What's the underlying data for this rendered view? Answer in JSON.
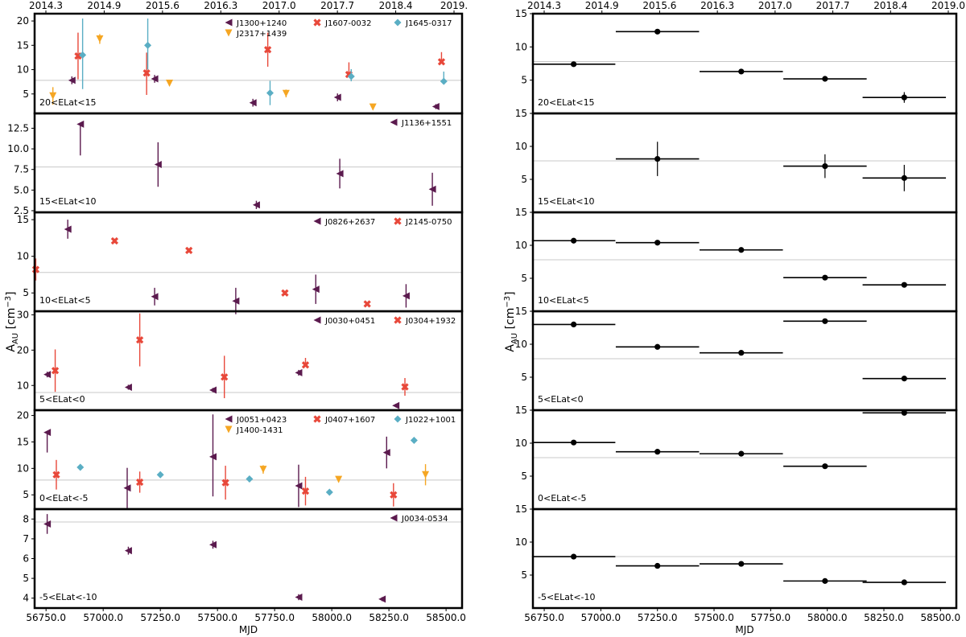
{
  "colors": {
    "J1": "#5b1a4e",
    "J2": "#e8483a",
    "J3": "#5aaec4",
    "J4": "#f5a623"
  },
  "chart_data": [
    {
      "type": "scatter",
      "title": "",
      "xlabel": "MJD",
      "ylabel": "A_AU [cm^-3]",
      "xlim": [
        56700,
        58570
      ],
      "x_ticks": [
        "56750.0",
        "57000.0",
        "57250.0",
        "57500.0",
        "57750.0",
        "58000.0",
        "58250.0",
        "58500.0"
      ],
      "top_ticks": [
        "2014.3",
        "2014.9",
        "2015.6",
        "2016.3",
        "2017.0",
        "2017.7",
        "2018.4",
        "2019."
      ],
      "panels": [
        {
          "label": "20<ELat<15",
          "ylim": [
            1,
            21.5
          ],
          "yticks": [
            "5",
            "10",
            "15",
            "20"
          ],
          "hline": 7.8,
          "series": [
            {
              "name": "J1300+1240",
              "marker": "tri-left",
              "color": "J1",
              "points": [
                [
                  56863,
                  7.8,
                  0.8,
                  0.8
                ],
                [
                  57225,
                  8.1,
                  0.8,
                  0.8
                ],
                [
                  57655,
                  3.2,
                  0.8,
                  0.8
                ],
                [
                  58025,
                  4.3,
                  0.8,
                  0.8
                ],
                [
                  58455,
                  2.4,
                  0.5,
                  0.5
                ]
              ]
            },
            {
              "name": "J1607-0032",
              "marker": "x",
              "color": "J2",
              "points": [
                [
                  56890,
                  12.8,
                  4.8,
                  4.8
                ],
                [
                  57190,
                  9.3,
                  4.2,
                  4.5
                ],
                [
                  57720,
                  14.1,
                  3.5,
                  3.5
                ],
                [
                  58075,
                  9.0,
                  2.5,
                  0
                ],
                [
                  58480,
                  11.6,
                  2.0,
                  0
                ]
              ]
            },
            {
              "name": "J1645-0317",
              "marker": "diamond",
              "color": "J3",
              "points": [
                [
                  56910,
                  13.0,
                  7.5,
                  7.0
                ],
                [
                  57195,
                  15.0,
                  5.5,
                  5.0
                ],
                [
                  57730,
                  5.2,
                  2.5,
                  2.5
                ],
                [
                  58085,
                  8.6,
                  1.5,
                  1.0
                ],
                [
                  58490,
                  7.6,
                  2.0,
                  0
                ]
              ]
            },
            {
              "name": "J2317+1439",
              "marker": "tri-down",
              "color": "J4",
              "points": [
                [
                  56780,
                  4.6,
                  1.8,
                  1.8
                ],
                [
                  56985,
                  16.3,
                  1.0,
                  1.0
                ],
                [
                  57290,
                  7.2,
                  0.5,
                  0.5
                ],
                [
                  57800,
                  5.1,
                  0.8,
                  0.8
                ],
                [
                  58180,
                  2.3,
                  0.6,
                  0.6
                ]
              ]
            }
          ]
        },
        {
          "label": "15<ELat<10",
          "ylim": [
            2.3,
            14.3
          ],
          "yticks": [
            "2.5",
            "5.0",
            "7.5",
            "10.0",
            "12.5"
          ],
          "hline": 7.8,
          "series": [
            {
              "name": "J1136+1551",
              "marker": "tri-left",
              "color": "J1",
              "points": [
                [
                  56900,
                  13.0,
                  0,
                  3.8
                ],
                [
                  57240,
                  8.1,
                  2.7,
                  2.7
                ],
                [
                  57670,
                  3.2,
                  0.5,
                  0.5
                ],
                [
                  58035,
                  7.0,
                  1.8,
                  1.8
                ],
                [
                  58440,
                  5.1,
                  2.0,
                  2.0
                ]
              ]
            }
          ]
        },
        {
          "label": "10<ELat<5",
          "ylim": [
            2.5,
            16
          ],
          "yticks": [
            "5",
            "10",
            "15"
          ],
          "hline": 7.8,
          "series": [
            {
              "name": "J0826+2637",
              "marker": "tri-left",
              "color": "J1",
              "points": [
                [
                  56845,
                  13.7,
                  1.3,
                  1.3
                ],
                [
                  57225,
                  4.5,
                  1.2,
                  1.2
                ],
                [
                  57580,
                  3.9,
                  1.8,
                  1.8
                ],
                [
                  57930,
                  5.5,
                  2.0,
                  2.0
                ],
                [
                  58325,
                  4.6,
                  1.6,
                  1.6
                ]
              ]
            },
            {
              "name": "J2145-0750",
              "marker": "x",
              "color": "J2",
              "points": [
                [
                  56705,
                  8.2,
                  1.5,
                  1.5
                ],
                [
                  57050,
                  12.1,
                  0.3,
                  0.3
                ],
                [
                  57375,
                  10.8,
                  0.3,
                  0.3
                ],
                [
                  57795,
                  5.0,
                  0.3,
                  0.3
                ],
                [
                  58155,
                  3.5,
                  0.2,
                  0.2
                ]
              ]
            }
          ]
        },
        {
          "label": "5<ELat<0",
          "ylim": [
            3,
            31
          ],
          "yticks": [
            "10",
            "20",
            "30"
          ],
          "hline": 8,
          "series": [
            {
              "name": "J0030+0451",
              "marker": "tri-left",
              "color": "J1",
              "points": [
                [
                  56755,
                  13.1,
                  0.8,
                  0.8
                ],
                [
                  57110,
                  9.5,
                  0.7,
                  0.7
                ],
                [
                  57480,
                  8.7,
                  0.6,
                  0.6
                ],
                [
                  57855,
                  13.6,
                  0.8,
                  0.8
                ],
                [
                  58280,
                  4.3,
                  0.5,
                  0.5
                ]
              ]
            },
            {
              "name": "J0304+1932",
              "marker": "x",
              "color": "J2",
              "points": [
                [
                  56790,
                  14.2,
                  6,
                  6
                ],
                [
                  57160,
                  22.9,
                  7.5,
                  7.5
                ],
                [
                  57530,
                  12.4,
                  6,
                  6
                ],
                [
                  57885,
                  15.8,
                  2,
                  0
                ],
                [
                  58320,
                  9.6,
                  2.5,
                  2.5
                ]
              ]
            }
          ]
        },
        {
          "label": "0<ELat<-5",
          "ylim": [
            2.3,
            21
          ],
          "yticks": [
            "5",
            "10",
            "15",
            "20"
          ],
          "hline": 7.8,
          "series": [
            {
              "name": "J0051+0423",
              "marker": "tri-left",
              "color": "J1",
              "points": [
                [
                  56755,
                  16.8,
                  0,
                  3.8
                ],
                [
                  57105,
                  6.3,
                  3.8,
                  3.8
                ],
                [
                  57480,
                  12.2,
                  8.0,
                  7.5
                ],
                [
                  57855,
                  6.7,
                  4.0,
                  4.0
                ],
                [
                  58240,
                  13.0,
                  3.0,
                  3.0
                ]
              ]
            },
            {
              "name": "J0407+1607",
              "marker": "x",
              "color": "J2",
              "points": [
                [
                  56795,
                  8.8,
                  2.8,
                  2.8
                ],
                [
                  57160,
                  7.4,
                  2.0,
                  2.0
                ],
                [
                  57535,
                  7.3,
                  3.2,
                  3.2
                ],
                [
                  57885,
                  5.7,
                  2.7,
                  2.7
                ],
                [
                  58270,
                  5.0,
                  2.2,
                  2.2
                ]
              ]
            },
            {
              "name": "J1022+1001",
              "marker": "diamond",
              "color": "J3",
              "points": [
                [
                  56900,
                  10.2,
                  0.5,
                  0.5
                ],
                [
                  57250,
                  8.8,
                  0.4,
                  0.4
                ],
                [
                  57640,
                  8.0,
                  0.4,
                  0.4
                ],
                [
                  57990,
                  5.5,
                  0.4,
                  0.4
                ],
                [
                  58360,
                  15.3,
                  0.5,
                  0.5
                ]
              ]
            },
            {
              "name": "J1400-1431",
              "marker": "tri-down",
              "color": "J4",
              "points": [
                [
                  57700,
                  9.8,
                  0.8,
                  0.8
                ],
                [
                  58030,
                  7.9,
                  0.5,
                  0.5
                ],
                [
                  58410,
                  8.8,
                  2.0,
                  2.0
                ]
              ]
            }
          ]
        },
        {
          "label": "-5<ELat<-10",
          "ylim": [
            3.5,
            8.5
          ],
          "yticks": [
            "4",
            "5",
            "6",
            "7",
            "8"
          ],
          "hline": 7.85,
          "series": [
            {
              "name": "J0034-0534",
              "marker": "tri-left",
              "color": "J1",
              "points": [
                [
                  56755,
                  7.75,
                  0.5,
                  0.5
                ],
                [
                  57110,
                  6.4,
                  0.2,
                  0.2
                ],
                [
                  57480,
                  6.7,
                  0.2,
                  0.2
                ],
                [
                  57855,
                  4.05,
                  0.15,
                  0.15
                ],
                [
                  58220,
                  3.95,
                  0.1,
                  0.1
                ]
              ]
            }
          ]
        }
      ]
    },
    {
      "type": "scatter",
      "title": "",
      "xlabel": "MJD",
      "ylabel": "A_AU [cm^-3]",
      "xlim": [
        56700,
        58570
      ],
      "x_ticks": [
        "56750.0",
        "57000.0",
        "57250.0",
        "57500.0",
        "57750.0",
        "58000.0",
        "58250.0",
        "58500.0"
      ],
      "top_ticks": [
        "2014.3",
        "2014.9",
        "2015.6",
        "2016.3",
        "2017.0",
        "2017.7",
        "2018.4",
        "2019.0"
      ],
      "panels": [
        {
          "label": "20<ELat<15",
          "ylim": [
            0,
            15
          ],
          "yticks": [
            "5",
            "10",
            "15"
          ],
          "hline": 7.8,
          "points": [
            [
              56880,
              7.4,
              184,
              0.2
            ],
            [
              57250,
              12.3,
              184,
              0.3
            ],
            [
              57620,
              6.3,
              184,
              0.2
            ],
            [
              57990,
              5.2,
              184,
              0.2
            ],
            [
              58340,
              2.4,
              184,
              0.8
            ]
          ]
        },
        {
          "label": "15<ELat<10",
          "ylim": [
            0,
            15
          ],
          "yticks": [
            "5",
            "10",
            "15"
          ],
          "hline": 7.8,
          "points": [
            [
              57250,
              8.1,
              184,
              2.6
            ],
            [
              57990,
              7.0,
              184,
              1.8
            ],
            [
              58340,
              5.2,
              184,
              2.0
            ]
          ]
        },
        {
          "label": "10<ELat<5",
          "ylim": [
            0,
            15
          ],
          "yticks": [
            "5",
            "10",
            "15"
          ],
          "hline": 7.8,
          "points": [
            [
              56880,
              10.7,
              184,
              0.2
            ],
            [
              57250,
              10.4,
              184,
              0.2
            ],
            [
              57620,
              9.3,
              184,
              0.2
            ],
            [
              57990,
              5.1,
              184,
              0.2
            ],
            [
              58340,
              4.0,
              184,
              0.2
            ]
          ]
        },
        {
          "label": "5<ELat<0",
          "ylim": [
            0,
            15
          ],
          "yticks": [
            "5",
            "10",
            "15"
          ],
          "hline": 7.8,
          "points": [
            [
              56880,
              13.0,
              184,
              0.2
            ],
            [
              57250,
              9.6,
              184,
              0.2
            ],
            [
              57620,
              8.7,
              184,
              0.2
            ],
            [
              57990,
              13.5,
              184,
              0.4
            ],
            [
              58340,
              4.8,
              184,
              0.2
            ]
          ]
        },
        {
          "label": "0<ELat<-5",
          "ylim": [
            0,
            15
          ],
          "yticks": [
            "5",
            "10",
            "15"
          ],
          "hline": 7.8,
          "points": [
            [
              56880,
              10.1,
              184,
              0.2
            ],
            [
              57250,
              8.7,
              184,
              0.2
            ],
            [
              57620,
              8.4,
              184,
              0.2
            ],
            [
              57990,
              6.5,
              184,
              0.2
            ],
            [
              58340,
              14.6,
              184,
              0.2
            ]
          ]
        },
        {
          "label": "-5<ELat<-10",
          "ylim": [
            0,
            15
          ],
          "yticks": [
            "5",
            "10",
            "15"
          ],
          "hline": 7.8,
          "points": [
            [
              56880,
              7.8,
              184,
              0.4
            ],
            [
              57250,
              6.4,
              184,
              0.2
            ],
            [
              57620,
              6.7,
              184,
              0.2
            ],
            [
              57990,
              4.1,
              184,
              0.2
            ],
            [
              58340,
              3.9,
              184,
              0.2
            ]
          ]
        }
      ]
    }
  ]
}
